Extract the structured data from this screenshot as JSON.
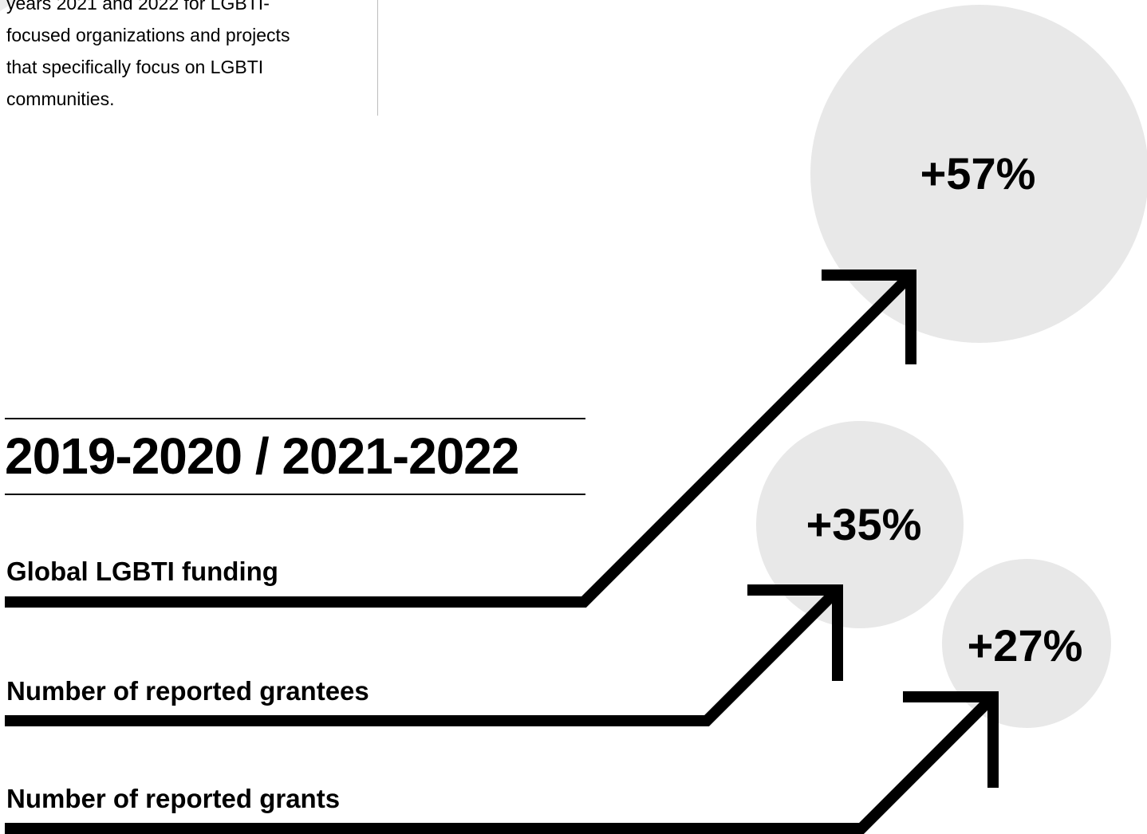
{
  "intro": {
    "lines": [
      "years 2021 and 2022 for LGBTI-",
      "focused organizations and projects",
      "that specifically focus on LGBTI",
      "communities."
    ]
  },
  "period_label": "2019-2020 / 2021-2022",
  "colors": {
    "circle_fill": "#e8e8e8",
    "arrow": "#000000",
    "text": "#000000"
  },
  "metrics": [
    {
      "label": "Global LGBTI funding",
      "change": "+57%",
      "change_percent": 57
    },
    {
      "label": "Number of reported grantees",
      "change": "+35%",
      "change_percent": 35
    },
    {
      "label": "Number of reported grants",
      "change": "+27%",
      "change_percent": 27
    }
  ]
}
